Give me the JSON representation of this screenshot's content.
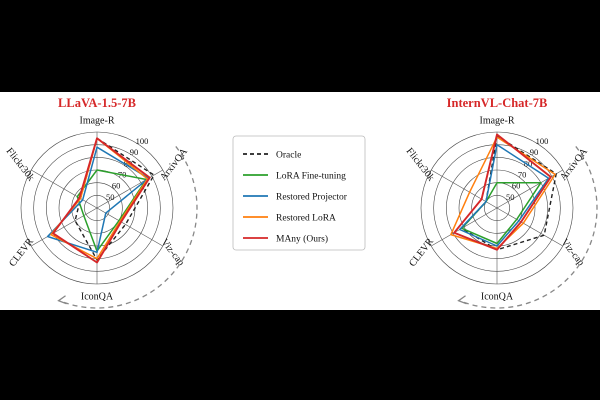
{
  "colors": {
    "oracle": "#222222",
    "lora": "#2ca02c",
    "projector": "#1f77b4",
    "restored_lora": "#ff7f0e",
    "many": "#d62728",
    "title": "#d62728"
  },
  "legend": {
    "items": [
      {
        "key": "oracle",
        "label": "Oracle",
        "dash": true
      },
      {
        "key": "lora",
        "label": "LoRA Fine-tuning",
        "dash": false
      },
      {
        "key": "projector",
        "label": "Restored Projector",
        "dash": false
      },
      {
        "key": "restored_lora",
        "label": "Restored LoRA",
        "dash": false
      },
      {
        "key": "many",
        "label": "MAny (Ours)",
        "dash": false
      }
    ]
  },
  "chart_data": [
    {
      "type": "radar",
      "title": "LLaVA-1.5-7B",
      "axes": [
        "Image-R",
        "ArxivQA",
        "Viz-cap",
        "IconQA",
        "CLEVR",
        "Flickr30k"
      ],
      "rticks": [
        50,
        60,
        70,
        80,
        90,
        100
      ],
      "rlim": [
        40,
        100
      ],
      "series": [
        {
          "name": "Oracle",
          "key": "oracle",
          "values": [
            95,
            92,
            66,
            81,
            60,
            55
          ]
        },
        {
          "name": "LoRA Fine-tuning",
          "key": "lora",
          "values": [
            70,
            85,
            60,
            74,
            52,
            58
          ]
        },
        {
          "name": "Restored Projector",
          "key": "projector",
          "values": [
            88,
            87,
            48,
            75,
            85,
            53
          ]
        },
        {
          "name": "Restored LoRA",
          "key": "restored_lora",
          "values": [
            95,
            86,
            61,
            80,
            82,
            55
          ]
        },
        {
          "name": "MAny (Ours)",
          "key": "many",
          "values": [
            95,
            88,
            62,
            83,
            80,
            56
          ]
        }
      ]
    },
    {
      "type": "radar",
      "title": "InternVL-Chat-7B",
      "axes": [
        "Image-R",
        "ArxivQA",
        "Viz-cap",
        "IconQA",
        "CLEVR",
        "Flickr30k"
      ],
      "rticks": [
        50,
        60,
        70,
        80,
        90,
        100
      ],
      "rlim": [
        40,
        100
      ],
      "series": [
        {
          "name": "Oracle",
          "key": "oracle",
          "values": [
            97,
            94,
            83,
            73,
            72,
            50
          ]
        },
        {
          "name": "LoRA Fine-tuning",
          "key": "lora",
          "values": [
            60,
            80,
            58,
            68,
            72,
            50
          ]
        },
        {
          "name": "Restored Projector",
          "key": "projector",
          "values": [
            90,
            87,
            60,
            70,
            74,
            50
          ]
        },
        {
          "name": "Restored LoRA",
          "key": "restored_lora",
          "values": [
            96,
            93,
            64,
            72,
            82,
            65
          ]
        },
        {
          "name": "MAny (Ours)",
          "key": "many",
          "values": [
            98,
            89,
            62,
            73,
            79,
            54
          ]
        }
      ]
    }
  ]
}
